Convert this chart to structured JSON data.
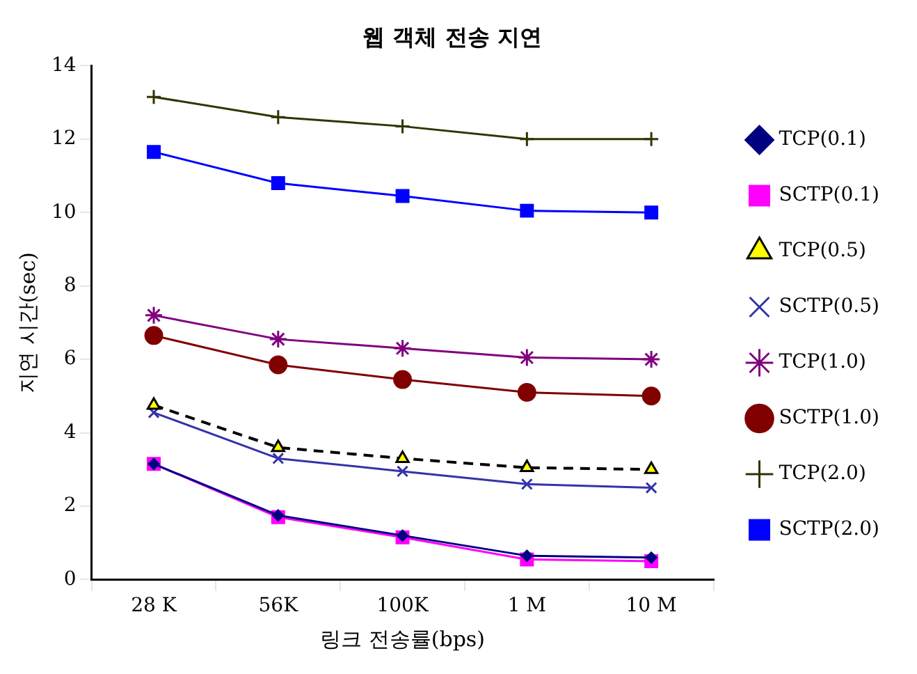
{
  "chart_data": {
    "type": "line",
    "title": "웹 객체 전송 지연",
    "xlabel": "링크 전송률(bps)",
    "ylabel": "지연 시간(sec)",
    "categories": [
      "28 K",
      "56K",
      "100K",
      "1 M",
      "10 M"
    ],
    "series": [
      {
        "name": "TCP(0.1)",
        "color": "#000080",
        "marker": "diamond",
        "values": [
          3.15,
          1.75,
          1.2,
          0.65,
          0.6
        ]
      },
      {
        "name": "SCTP(0.1)",
        "color": "#ff00ff",
        "marker": "square",
        "values": [
          3.15,
          1.7,
          1.15,
          0.55,
          0.5
        ]
      },
      {
        "name": "TCP(0.5)",
        "color": "#000000",
        "marker": "triangle",
        "line_style": "dashed",
        "values": [
          4.75,
          3.6,
          3.3,
          3.05,
          3.0
        ]
      },
      {
        "name": "SCTP(0.5)",
        "color": "#3333aa",
        "marker": "cross",
        "values": [
          4.55,
          3.3,
          2.95,
          2.6,
          2.5
        ]
      },
      {
        "name": "TCP(1.0)",
        "color": "#800080",
        "marker": "cross",
        "values": [
          7.2,
          6.55,
          6.3,
          6.05,
          6.0
        ]
      },
      {
        "name": "SCTP(1.0)",
        "color": "#800000",
        "marker": "circle",
        "values": [
          6.65,
          5.85,
          5.45,
          5.1,
          5.0
        ]
      },
      {
        "name": "TCP(2.0)",
        "color": "#333300",
        "marker": "cross",
        "values": [
          13.15,
          12.6,
          12.35,
          12.0,
          12.0
        ]
      },
      {
        "name": "SCTP(2.0)",
        "color": "#0000ff",
        "marker": "square",
        "values": [
          11.65,
          10.8,
          10.45,
          10.05,
          10.0
        ]
      }
    ],
    "ylim": [
      0,
      14
    ],
    "yticks": [
      0,
      2,
      4,
      6,
      8,
      10,
      12,
      14
    ],
    "grid": false,
    "legend": "right"
  }
}
